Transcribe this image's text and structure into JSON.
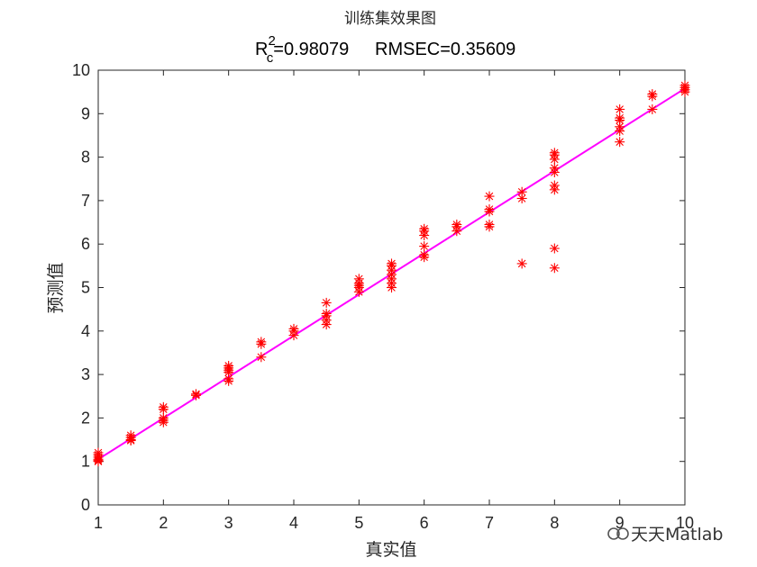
{
  "chart_data": {
    "type": "scatter",
    "title": "训练集效果图",
    "subtitle": {
      "r2_symbol": "R",
      "r2_sup": "2",
      "r2_sub": "c",
      "r2_value": "=0.98079",
      "rmse_text": "RMSEC=0.35609"
    },
    "xlabel": "真实值",
    "ylabel": "预测值",
    "xlim": [
      1,
      10
    ],
    "ylim": [
      0,
      10
    ],
    "xticks": [
      "1",
      "2",
      "3",
      "4",
      "5",
      "6",
      "7",
      "8",
      "9",
      "10"
    ],
    "yticks": [
      "0",
      "1",
      "2",
      "3",
      "4",
      "5",
      "6",
      "7",
      "8",
      "9",
      "10"
    ],
    "grid": false,
    "marker": "*",
    "marker_color": "#ff0000",
    "fit_line": {
      "x": [
        1,
        10
      ],
      "y": [
        1.05,
        9.58
      ],
      "color": "#ff00ff"
    },
    "points": [
      [
        1,
        1.0
      ],
      [
        1,
        1.05
      ],
      [
        1,
        1.1
      ],
      [
        1,
        1.2
      ],
      [
        1,
        1.15
      ],
      [
        1,
        1.02
      ],
      [
        1.5,
        1.5
      ],
      [
        1.5,
        1.55
      ],
      [
        1.5,
        1.6
      ],
      [
        1.5,
        1.48
      ],
      [
        2,
        1.9
      ],
      [
        2,
        1.95
      ],
      [
        2,
        2.0
      ],
      [
        2,
        2.25
      ],
      [
        2,
        2.2
      ],
      [
        2.5,
        2.55
      ],
      [
        2.5,
        2.52
      ],
      [
        3,
        2.85
      ],
      [
        3,
        2.9
      ],
      [
        3,
        3.05
      ],
      [
        3,
        3.1
      ],
      [
        3,
        3.2
      ],
      [
        3,
        3.15
      ],
      [
        3.5,
        3.4
      ],
      [
        3.5,
        3.7
      ],
      [
        3.5,
        3.75
      ],
      [
        4,
        3.9
      ],
      [
        4,
        4.0
      ],
      [
        4,
        4.05
      ],
      [
        4.5,
        4.15
      ],
      [
        4.5,
        4.25
      ],
      [
        4.5,
        4.35
      ],
      [
        4.5,
        4.4
      ],
      [
        4.5,
        4.65
      ],
      [
        5,
        4.9
      ],
      [
        5,
        5.0
      ],
      [
        5,
        5.05
      ],
      [
        5,
        5.1
      ],
      [
        5,
        5.2
      ],
      [
        5.5,
        5.0
      ],
      [
        5.5,
        5.1
      ],
      [
        5.5,
        5.2
      ],
      [
        5.5,
        5.3
      ],
      [
        5.5,
        5.4
      ],
      [
        5.5,
        5.5
      ],
      [
        5.5,
        5.55
      ],
      [
        6,
        5.7
      ],
      [
        6,
        5.75
      ],
      [
        6,
        5.95
      ],
      [
        6,
        6.2
      ],
      [
        6,
        6.3
      ],
      [
        6,
        6.35
      ],
      [
        6.5,
        6.3
      ],
      [
        6.5,
        6.4
      ],
      [
        6.5,
        6.45
      ],
      [
        7,
        6.4
      ],
      [
        7,
        6.45
      ],
      [
        7,
        6.75
      ],
      [
        7,
        6.8
      ],
      [
        7,
        7.1
      ],
      [
        7.5,
        5.55
      ],
      [
        7.5,
        7.05
      ],
      [
        7.5,
        7.2
      ],
      [
        8,
        5.45
      ],
      [
        8,
        5.9
      ],
      [
        8,
        7.25
      ],
      [
        8,
        7.35
      ],
      [
        8,
        7.65
      ],
      [
        8,
        7.75
      ],
      [
        8,
        7.95
      ],
      [
        8,
        8.05
      ],
      [
        8,
        8.1
      ],
      [
        9,
        8.35
      ],
      [
        9,
        8.6
      ],
      [
        9,
        8.7
      ],
      [
        9,
        8.85
      ],
      [
        9,
        8.9
      ],
      [
        9,
        9.1
      ],
      [
        9.5,
        9.1
      ],
      [
        9.5,
        9.4
      ],
      [
        9.5,
        9.45
      ],
      [
        10,
        9.5
      ],
      [
        10,
        9.55
      ],
      [
        10,
        9.6
      ],
      [
        10,
        9.65
      ]
    ]
  },
  "watermark": {
    "icon": "wechat-channel-icon",
    "text": "天天Matlab"
  }
}
